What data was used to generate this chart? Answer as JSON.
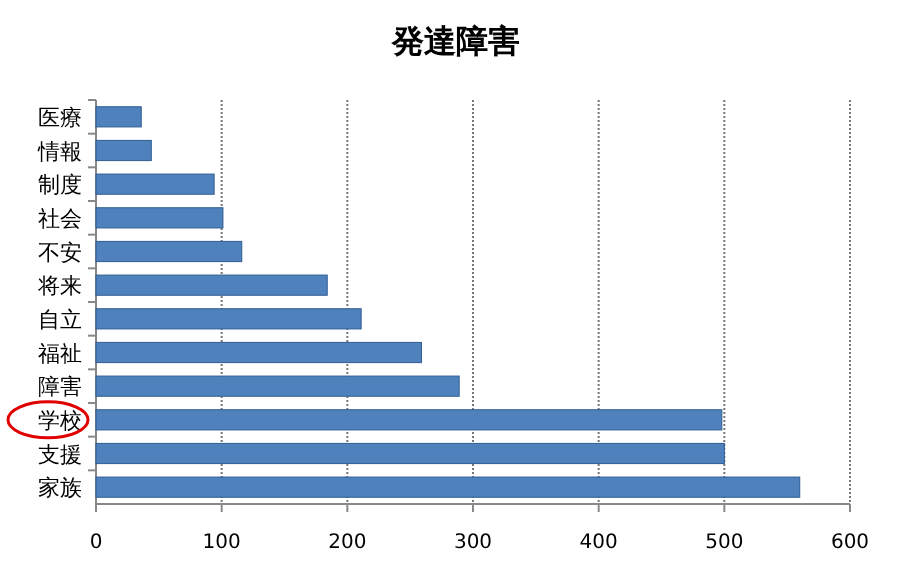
{
  "chart_data": {
    "type": "bar",
    "orientation": "horizontal",
    "title": "発達障害",
    "categories": [
      "医療",
      "情報",
      "制度",
      "社会",
      "不安",
      "将来",
      "自立",
      "福祉",
      "障害",
      "学校",
      "支援",
      "家族"
    ],
    "series": [
      {
        "color": "#4f81bd",
        "values": [
          36,
          44,
          94,
          101,
          116,
          184,
          211,
          259,
          289,
          498,
          500,
          560
        ]
      }
    ],
    "xlim": [
      0,
      600
    ],
    "xticks": [
      0,
      100,
      200,
      300,
      400,
      500,
      600
    ],
    "grid": "x"
  }
}
